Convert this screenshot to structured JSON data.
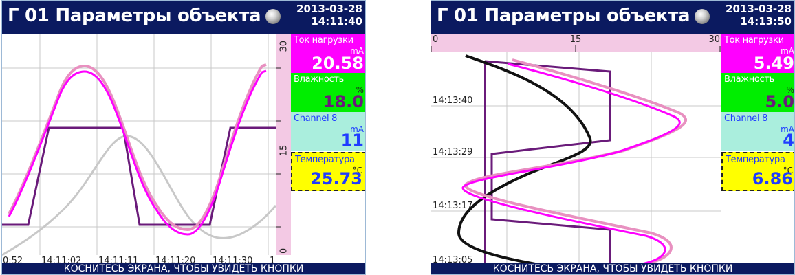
{
  "colors": {
    "header_bg": "#0b1a60",
    "header_text": "#ffffff",
    "grid": "#c8c8c8",
    "current": "#ff00ff",
    "humidity": "#6a1b7a",
    "channel8": "#c8c8c8",
    "temperature_left": "#e890c0",
    "temperature_right": "#111111",
    "tile_current": "#ff00ff",
    "tile_humidity": "#00ee00",
    "tile_channel": "#aaeedd",
    "tile_temperature": "#ffff00",
    "scale_strip": "#f3c9e4"
  },
  "panels": [
    {
      "title": "Г 01 Параметры объекта",
      "date": "2013-03-28",
      "time": "14:11:40",
      "scale_labels": [
        "30",
        "15",
        "0"
      ],
      "time_labels": [
        "0:52",
        "14:11:02",
        "14:11:11",
        "14:11:20",
        "14:11:30",
        "1"
      ],
      "tiles": [
        {
          "name": "Ток нагрузки",
          "unit": "mA",
          "value": "20.58"
        },
        {
          "name": "Влажность",
          "unit": "%",
          "value": "18.0"
        },
        {
          "name": "Channel 8",
          "unit": "mA",
          "value": "11"
        },
        {
          "name": "Температура",
          "unit": "°C",
          "value": "25.73"
        }
      ],
      "footer": "КОСНИТЕСЬ ЭКРАНА, ЧТОБЫ УВИДЕТЬ КНОПКИ"
    },
    {
      "title": "Г 01 Параметры объекта",
      "date": "2013-03-28",
      "time": "14:13:50",
      "scale_labels": [
        "0",
        "15",
        "30"
      ],
      "time_labels": [
        "14:13:40",
        "14:13:29",
        "14:13:17",
        "14:13:05"
      ],
      "tiles": [
        {
          "name": "Ток нагрузки",
          "unit": "mA",
          "value": "5.49"
        },
        {
          "name": "Влажность",
          "unit": "%",
          "value": "5.0"
        },
        {
          "name": "Channel 8",
          "unit": "mA",
          "value": "4"
        },
        {
          "name": "Температура",
          "unit": "°C",
          "value": "6.86"
        }
      ],
      "footer": "КОСНИТЕСЬ ЭКРАНА, ЧТОБЫ УВИДЕТЬ КНОПКИ"
    }
  ]
}
